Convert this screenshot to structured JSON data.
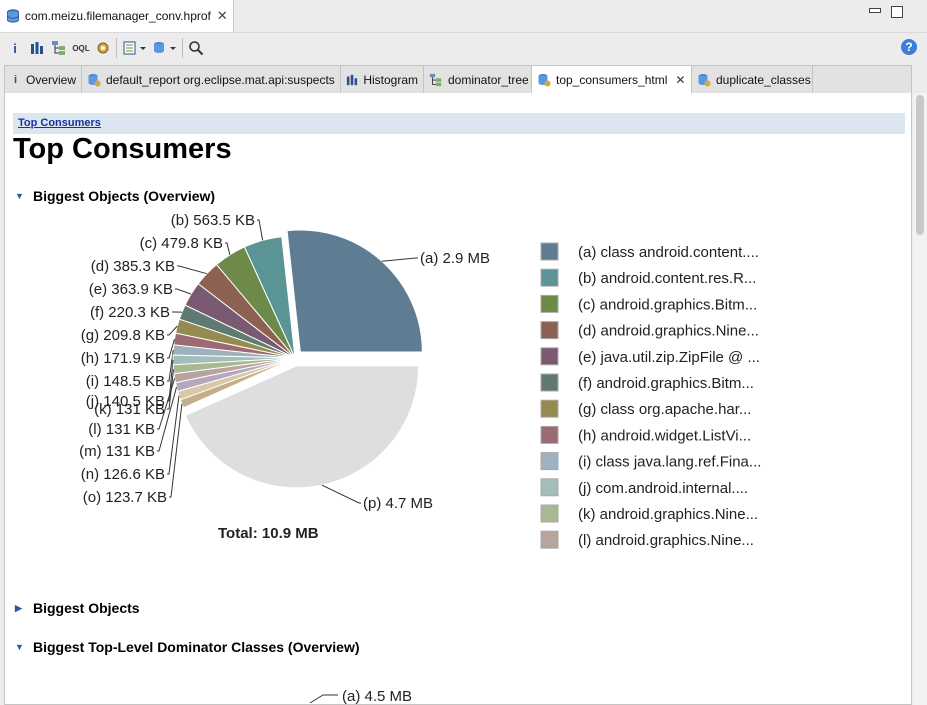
{
  "window": {
    "file_tab": "com.meizu.filemanager_conv.hprof"
  },
  "tabs": [
    {
      "label": "Overview",
      "icon": "info-icon"
    },
    {
      "label": "default_report  org.eclipse.mat.api:suspects",
      "icon": "report-icon"
    },
    {
      "label": "Histogram",
      "icon": "histogram-icon"
    },
    {
      "label": "dominator_tree",
      "icon": "tree-icon"
    },
    {
      "label": "top_consumers_html",
      "icon": "report-icon",
      "active": true
    },
    {
      "label": "duplicate_classes",
      "icon": "report-icon"
    }
  ],
  "toolbar": {
    "icons": [
      "info-icon",
      "histogram-icon",
      "dominator-tree-icon",
      "oql-icon",
      "gear-icon",
      "run-report-icon",
      "query-browser-icon",
      "search-icon"
    ],
    "help_label": "?"
  },
  "page": {
    "breadcrumb": "Top Consumers",
    "title": "Top Consumers",
    "section1": "Biggest Objects (Overview)",
    "section2": "Biggest Objects",
    "section3": "Biggest Top-Level Dominator Classes (Overview)"
  },
  "chart_data": [
    {
      "type": "pie",
      "title": "",
      "total_label": "Total: 10.9 MB",
      "slices": [
        {
          "key": "(a)",
          "label": "2.9 MB",
          "value": 2.9,
          "color": "#5e7d92",
          "legend": "class android.content...."
        },
        {
          "key": "(b)",
          "label": "563.5 KB",
          "value": 0.5503,
          "color": "#5b9494",
          "legend": "android.content.res.R..."
        },
        {
          "key": "(c)",
          "label": "479.8 KB",
          "value": 0.4686,
          "color": "#6d8a4a",
          "legend": "android.graphics.Bitm..."
        },
        {
          "key": "(d)",
          "label": "385.3 KB",
          "value": 0.3763,
          "color": "#8c6151",
          "legend": "android.graphics.Nine..."
        },
        {
          "key": "(e)",
          "label": "363.9 KB",
          "value": 0.3554,
          "color": "#7a5a72",
          "legend": "java.util.zip.ZipFile @ ..."
        },
        {
          "key": "(f)",
          "label": "220.3 KB",
          "value": 0.2151,
          "color": "#5f7a70",
          "legend": "android.graphics.Bitm..."
        },
        {
          "key": "(g)",
          "label": "209.8 KB",
          "value": 0.2049,
          "color": "#958a50",
          "legend": "class org.apache.har..."
        },
        {
          "key": "(h)",
          "label": "171.9 KB",
          "value": 0.1679,
          "color": "#9c6a73",
          "legend": "android.widget.ListVi..."
        },
        {
          "key": "(i)",
          "label": "148.5 KB",
          "value": 0.145,
          "color": "#9fb1bf",
          "legend": "class java.lang.ref.Fina..."
        },
        {
          "key": "(j)",
          "label": "140.5 KB",
          "value": 0.1372,
          "color": "#a3bdb8",
          "legend": "com.android.internal...."
        },
        {
          "key": "(k)",
          "label": "131 KB",
          "value": 0.1279,
          "color": "#a8b892",
          "legend": "android.graphics.Nine..."
        },
        {
          "key": "(l)",
          "label": "131 KB",
          "value": 0.1279,
          "color": "#b8a49a",
          "legend": "android.graphics.Nine..."
        },
        {
          "key": "(m)",
          "label": "131 KB",
          "value": 0.1279,
          "color": "#b5a7bd",
          "legend": ""
        },
        {
          "key": "(n)",
          "label": "126.6 KB",
          "value": 0.1236,
          "color": "#d9c7a6",
          "legend": ""
        },
        {
          "key": "(o)",
          "label": "123.7 KB",
          "value": 0.1208,
          "color": "#c3b08a",
          "legend": ""
        },
        {
          "key": "(p)",
          "label": "4.7 MB",
          "value": 4.7,
          "color": "#dedede",
          "legend": ""
        }
      ],
      "legend_placement": "right"
    },
    {
      "type": "pie",
      "title": "",
      "slices": [
        {
          "key": "(a)",
          "label": "4.5 MB",
          "value": 4.5
        }
      ]
    }
  ]
}
